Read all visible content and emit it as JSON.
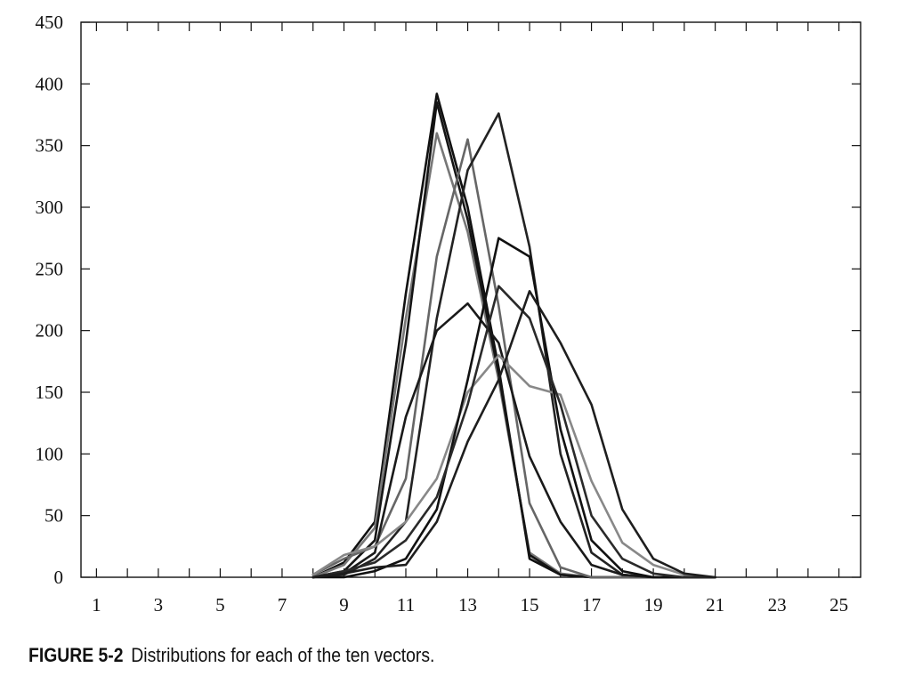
{
  "chart_data": {
    "type": "line",
    "title": "",
    "xlabel": "",
    "ylabel": "",
    "xlim": [
      0.5,
      25.7
    ],
    "ylim": [
      0,
      450
    ],
    "x_ticks": [
      1,
      3,
      5,
      7,
      9,
      11,
      13,
      15,
      17,
      19,
      21,
      23,
      25
    ],
    "y_ticks": [
      0,
      50,
      100,
      150,
      200,
      250,
      300,
      350,
      400,
      450
    ],
    "grid": false,
    "legend": "none",
    "x": [
      8,
      9,
      10,
      11,
      12,
      13,
      14,
      15,
      16,
      17,
      18,
      19,
      20,
      21
    ],
    "series": [
      {
        "color": "#111111",
        "values": [
          0,
          12,
          45,
          230,
          392,
          300,
          170,
          15,
          2,
          0,
          0,
          0,
          0,
          0
        ]
      },
      {
        "color": "#777777",
        "values": [
          0,
          10,
          40,
          210,
          360,
          280,
          160,
          20,
          3,
          0,
          0,
          0,
          0,
          0
        ]
      },
      {
        "color": "#151515",
        "values": [
          0,
          5,
          30,
          190,
          385,
          290,
          165,
          18,
          2,
          0,
          0,
          0,
          0,
          0
        ]
      },
      {
        "color": "#666666",
        "values": [
          2,
          15,
          25,
          80,
          260,
          355,
          220,
          60,
          8,
          0,
          0,
          0,
          0,
          0
        ]
      },
      {
        "color": "#222222",
        "values": [
          0,
          2,
          15,
          45,
          210,
          330,
          376,
          268,
          100,
          20,
          2,
          0,
          0,
          0
        ]
      },
      {
        "color": "#1a1a1a",
        "values": [
          0,
          3,
          20,
          130,
          200,
          222,
          190,
          98,
          45,
          10,
          2,
          0,
          0,
          0
        ]
      },
      {
        "color": "#888888",
        "values": [
          2,
          18,
          25,
          45,
          80,
          150,
          180,
          155,
          148,
          78,
          28,
          10,
          2,
          0
        ]
      },
      {
        "color": "#111111",
        "values": [
          0,
          0,
          5,
          15,
          55,
          160,
          275,
          260,
          120,
          30,
          5,
          0,
          0,
          0
        ]
      },
      {
        "color": "#2a2a2a",
        "values": [
          0,
          5,
          12,
          30,
          65,
          140,
          236,
          210,
          140,
          50,
          15,
          3,
          0,
          0
        ]
      },
      {
        "color": "#1e1e1e",
        "values": [
          0,
          3,
          8,
          10,
          45,
          110,
          160,
          232,
          190,
          140,
          55,
          15,
          3,
          0
        ]
      }
    ]
  },
  "caption": {
    "label": "FIGURE 5-2",
    "text": "Distributions for each of the ten vectors."
  }
}
